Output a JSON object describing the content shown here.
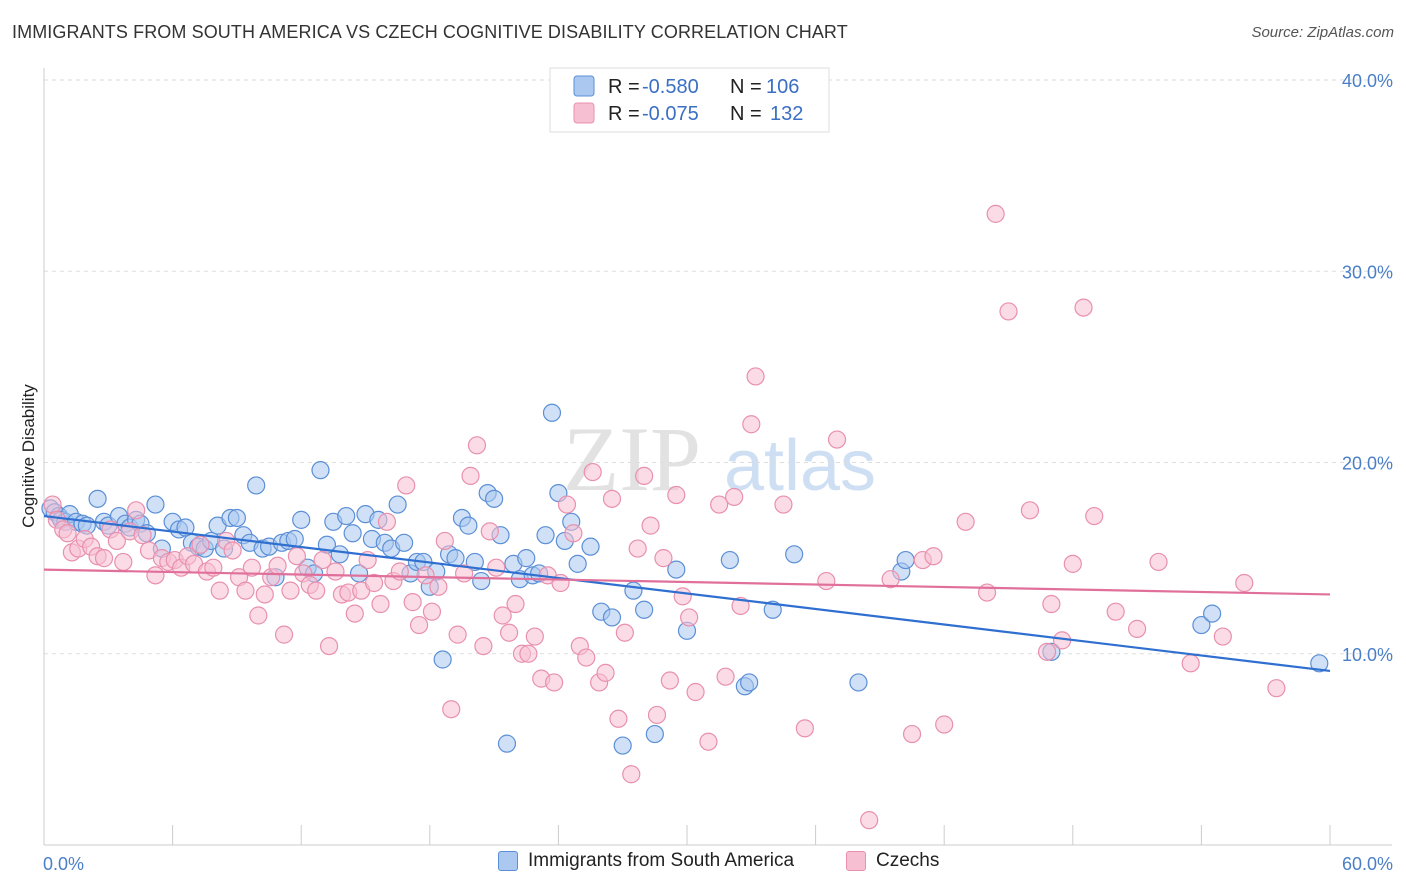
{
  "title": "IMMIGRANTS FROM SOUTH AMERICA VS CZECH COGNITIVE DISABILITY CORRELATION CHART",
  "source": "Source: ZipAtlas.com",
  "watermark": {
    "zip": "ZIP",
    "atlas": "atlas"
  },
  "colors": {
    "blue_fill": "#aac8f0",
    "blue_stroke": "#5b8fd6",
    "blue_line": "#2f6fd0",
    "pink_fill": "#f7c0d2",
    "pink_stroke": "#e890ae",
    "pink_line": "#e0709a",
    "grid": "#dddddd",
    "tick_text": "#4a7fc8"
  },
  "legend_box": {
    "rows": [
      {
        "r_label": "R =",
        "r_value": "-0.580",
        "n_label": "N =",
        "n_value": "106",
        "series": "blue"
      },
      {
        "r_label": "R =",
        "r_value": "-0.075",
        "n_label": "N =",
        "n_value": "132",
        "series": "pink"
      }
    ]
  },
  "chart_data": {
    "type": "scatter",
    "title": "IMMIGRANTS FROM SOUTH AMERICA VS CZECH COGNITIVE DISABILITY CORRELATION CHART",
    "xlabel": "",
    "ylabel": "Cognitive Disability",
    "xlim": [
      0,
      60
    ],
    "ylim": [
      0,
      40
    ],
    "x_tick_labels": [
      "0.0%",
      "60.0%"
    ],
    "y_ticks": [
      10,
      20,
      30,
      40
    ],
    "y_tick_labels": [
      "10.0%",
      "20.0%",
      "30.0%",
      "40.0%"
    ],
    "grid": "horizontal dashed",
    "legend_position": "bottom",
    "series": [
      {
        "name": "Immigrants from South America",
        "color": "blue",
        "trend": {
          "x": [
            0,
            60
          ],
          "y": [
            17.2,
            9.1
          ]
        },
        "points": [
          [
            0.3,
            17.6
          ],
          [
            0.5,
            17.4
          ],
          [
            0.7,
            17.2
          ],
          [
            0.8,
            17.0
          ],
          [
            1.0,
            16.9
          ],
          [
            1.2,
            17.3
          ],
          [
            1.5,
            16.9
          ],
          [
            1.8,
            16.8
          ],
          [
            2.0,
            16.7
          ],
          [
            2.5,
            18.1
          ],
          [
            2.8,
            16.9
          ],
          [
            3.0,
            16.7
          ],
          [
            3.5,
            17.2
          ],
          [
            3.8,
            16.8
          ],
          [
            4.0,
            16.6
          ],
          [
            4.3,
            17.0
          ],
          [
            4.5,
            16.8
          ],
          [
            4.8,
            16.3
          ],
          [
            5.2,
            17.8
          ],
          [
            5.5,
            15.5
          ],
          [
            6.0,
            16.9
          ],
          [
            6.3,
            16.5
          ],
          [
            6.6,
            16.6
          ],
          [
            6.9,
            15.8
          ],
          [
            7.2,
            15.6
          ],
          [
            7.5,
            15.5
          ],
          [
            7.8,
            15.9
          ],
          [
            8.1,
            16.7
          ],
          [
            8.4,
            15.5
          ],
          [
            8.7,
            17.1
          ],
          [
            9.0,
            17.1
          ],
          [
            9.3,
            16.2
          ],
          [
            9.6,
            15.8
          ],
          [
            9.9,
            18.8
          ],
          [
            10.2,
            15.5
          ],
          [
            10.5,
            15.6
          ],
          [
            10.8,
            14.0
          ],
          [
            11.1,
            15.8
          ],
          [
            11.4,
            15.9
          ],
          [
            11.7,
            16.0
          ],
          [
            12.0,
            17.0
          ],
          [
            12.3,
            14.5
          ],
          [
            12.6,
            14.2
          ],
          [
            12.9,
            19.6
          ],
          [
            13.2,
            15.7
          ],
          [
            13.5,
            16.9
          ],
          [
            13.8,
            15.2
          ],
          [
            14.1,
            17.2
          ],
          [
            14.4,
            16.3
          ],
          [
            14.7,
            14.2
          ],
          [
            15.0,
            17.3
          ],
          [
            15.3,
            16.0
          ],
          [
            15.6,
            17.0
          ],
          [
            15.9,
            15.8
          ],
          [
            16.2,
            15.5
          ],
          [
            16.5,
            17.8
          ],
          [
            16.8,
            15.8
          ],
          [
            17.1,
            14.2
          ],
          [
            17.4,
            14.8
          ],
          [
            17.7,
            14.8
          ],
          [
            18.0,
            13.5
          ],
          [
            18.3,
            14.3
          ],
          [
            18.6,
            9.7
          ],
          [
            18.9,
            15.2
          ],
          [
            19.2,
            15.0
          ],
          [
            19.5,
            17.1
          ],
          [
            19.8,
            16.7
          ],
          [
            20.1,
            14.8
          ],
          [
            20.4,
            13.8
          ],
          [
            20.7,
            18.4
          ],
          [
            21.0,
            18.1
          ],
          [
            21.3,
            16.2
          ],
          [
            21.6,
            5.3
          ],
          [
            21.9,
            14.7
          ],
          [
            22.2,
            13.9
          ],
          [
            22.5,
            15.0
          ],
          [
            22.8,
            14.1
          ],
          [
            23.1,
            14.2
          ],
          [
            23.4,
            16.2
          ],
          [
            23.7,
            22.6
          ],
          [
            24.0,
            18.4
          ],
          [
            24.3,
            15.9
          ],
          [
            24.6,
            16.9
          ],
          [
            24.9,
            14.7
          ],
          [
            25.5,
            15.6
          ],
          [
            26.0,
            12.2
          ],
          [
            26.5,
            11.9
          ],
          [
            27.0,
            5.2
          ],
          [
            27.5,
            13.3
          ],
          [
            28.0,
            12.3
          ],
          [
            28.5,
            5.8
          ],
          [
            29.5,
            14.4
          ],
          [
            30.0,
            11.2
          ],
          [
            32.0,
            14.9
          ],
          [
            32.7,
            8.3
          ],
          [
            32.9,
            8.5
          ],
          [
            34.0,
            12.3
          ],
          [
            35.0,
            15.2
          ],
          [
            38.0,
            8.5
          ],
          [
            40.0,
            14.3
          ],
          [
            40.2,
            14.9
          ],
          [
            47.0,
            10.1
          ],
          [
            54.0,
            11.5
          ],
          [
            54.5,
            12.1
          ],
          [
            59.5,
            9.5
          ]
        ]
      },
      {
        "name": "Czechs",
        "color": "pink",
        "trend": {
          "x": [
            0,
            60
          ],
          "y": [
            14.4,
            13.1
          ]
        },
        "points": [
          [
            0.4,
            17.8
          ],
          [
            0.6,
            17.0
          ],
          [
            0.9,
            16.5
          ],
          [
            1.1,
            16.3
          ],
          [
            1.3,
            15.3
          ],
          [
            1.6,
            15.5
          ],
          [
            1.9,
            16.0
          ],
          [
            2.2,
            15.6
          ],
          [
            2.5,
            15.1
          ],
          [
            2.8,
            15.0
          ],
          [
            3.1,
            16.5
          ],
          [
            3.4,
            15.9
          ],
          [
            3.7,
            14.8
          ],
          [
            4.0,
            16.4
          ],
          [
            4.3,
            17.5
          ],
          [
            4.6,
            16.2
          ],
          [
            4.9,
            15.4
          ],
          [
            5.2,
            14.1
          ],
          [
            5.5,
            15.0
          ],
          [
            5.8,
            14.8
          ],
          [
            6.1,
            14.9
          ],
          [
            6.4,
            14.5
          ],
          [
            6.7,
            15.1
          ],
          [
            7.0,
            14.7
          ],
          [
            7.3,
            15.7
          ],
          [
            7.6,
            14.3
          ],
          [
            7.9,
            14.5
          ],
          [
            8.2,
            13.3
          ],
          [
            8.5,
            15.9
          ],
          [
            8.8,
            15.4
          ],
          [
            9.1,
            14.0
          ],
          [
            9.4,
            13.3
          ],
          [
            9.7,
            14.5
          ],
          [
            10.0,
            12.0
          ],
          [
            10.3,
            13.1
          ],
          [
            10.6,
            14.0
          ],
          [
            10.9,
            14.6
          ],
          [
            11.2,
            11.0
          ],
          [
            11.5,
            13.3
          ],
          [
            11.8,
            15.1
          ],
          [
            12.1,
            14.2
          ],
          [
            12.4,
            13.6
          ],
          [
            12.7,
            13.3
          ],
          [
            13.0,
            14.9
          ],
          [
            13.3,
            10.4
          ],
          [
            13.6,
            14.3
          ],
          [
            13.9,
            13.1
          ],
          [
            14.2,
            13.2
          ],
          [
            14.5,
            12.1
          ],
          [
            14.8,
            13.3
          ],
          [
            15.1,
            14.9
          ],
          [
            15.4,
            13.7
          ],
          [
            15.7,
            12.6
          ],
          [
            16.0,
            16.9
          ],
          [
            16.3,
            13.8
          ],
          [
            16.6,
            14.3
          ],
          [
            16.9,
            18.8
          ],
          [
            17.2,
            12.7
          ],
          [
            17.5,
            11.5
          ],
          [
            17.8,
            14.1
          ],
          [
            18.1,
            12.2
          ],
          [
            18.4,
            13.5
          ],
          [
            18.7,
            15.9
          ],
          [
            19.0,
            7.1
          ],
          [
            19.3,
            11.0
          ],
          [
            19.6,
            14.2
          ],
          [
            19.9,
            19.3
          ],
          [
            20.2,
            20.9
          ],
          [
            20.5,
            10.4
          ],
          [
            20.8,
            16.4
          ],
          [
            21.1,
            14.5
          ],
          [
            21.4,
            12.0
          ],
          [
            21.7,
            11.1
          ],
          [
            22.0,
            12.6
          ],
          [
            22.3,
            10.0
          ],
          [
            22.6,
            10.0
          ],
          [
            22.9,
            10.9
          ],
          [
            23.2,
            8.7
          ],
          [
            23.5,
            14.1
          ],
          [
            23.8,
            8.5
          ],
          [
            24.1,
            13.7
          ],
          [
            24.4,
            17.8
          ],
          [
            24.7,
            16.3
          ],
          [
            25.0,
            10.4
          ],
          [
            25.3,
            9.8
          ],
          [
            25.6,
            19.5
          ],
          [
            25.9,
            8.5
          ],
          [
            26.2,
            9.0
          ],
          [
            26.5,
            18.1
          ],
          [
            26.8,
            6.6
          ],
          [
            27.1,
            11.1
          ],
          [
            27.4,
            3.7
          ],
          [
            27.7,
            15.5
          ],
          [
            28.0,
            19.3
          ],
          [
            28.3,
            16.7
          ],
          [
            28.6,
            6.8
          ],
          [
            28.9,
            15.0
          ],
          [
            29.2,
            8.6
          ],
          [
            29.5,
            18.3
          ],
          [
            29.8,
            13.0
          ],
          [
            30.1,
            11.9
          ],
          [
            30.4,
            8.0
          ],
          [
            31.0,
            5.4
          ],
          [
            31.5,
            17.8
          ],
          [
            31.8,
            8.8
          ],
          [
            32.2,
            18.2
          ],
          [
            32.5,
            12.5
          ],
          [
            33.0,
            22.0
          ],
          [
            33.2,
            24.5
          ],
          [
            34.5,
            17.8
          ],
          [
            35.5,
            6.1
          ],
          [
            36.5,
            13.8
          ],
          [
            37.0,
            21.2
          ],
          [
            38.5,
            1.3
          ],
          [
            39.5,
            13.9
          ],
          [
            40.5,
            5.8
          ],
          [
            41.0,
            14.9
          ],
          [
            41.5,
            15.1
          ],
          [
            42.0,
            6.3
          ],
          [
            43.0,
            16.9
          ],
          [
            44.0,
            13.2
          ],
          [
            45.0,
            27.9
          ],
          [
            46.0,
            17.5
          ],
          [
            47.0,
            12.6
          ],
          [
            47.5,
            10.7
          ],
          [
            48.0,
            14.7
          ],
          [
            48.5,
            28.1
          ],
          [
            49.0,
            17.2
          ],
          [
            50.0,
            12.2
          ],
          [
            51.0,
            11.3
          ],
          [
            52.0,
            14.8
          ],
          [
            53.5,
            9.5
          ],
          [
            55.0,
            10.9
          ],
          [
            56.0,
            13.7
          ],
          [
            57.5,
            8.2
          ],
          [
            44.4,
            33.0
          ],
          [
            46.8,
            10.1
          ]
        ]
      }
    ]
  },
  "bottom_legend": [
    {
      "label": "Immigrants from South America",
      "series": "blue"
    },
    {
      "label": "Czechs",
      "series": "pink"
    }
  ]
}
